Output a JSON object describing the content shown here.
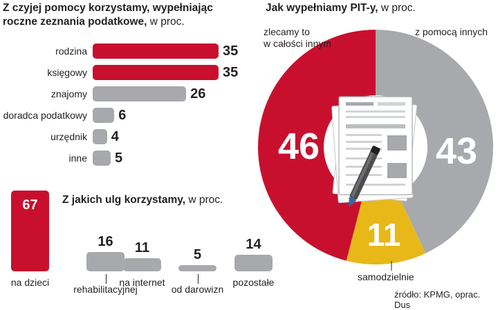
{
  "colors": {
    "red": "#c8102e",
    "gray": "#a7a9ac",
    "yellow": "#e8b819",
    "text": "#231f20"
  },
  "chart_data": [
    {
      "type": "bar",
      "orientation": "horizontal",
      "title_bold": "Z czyjej pomocy korzystamy, wypełniając roczne zeznania podatkowe,",
      "title_line1": "Z czyjej pomocy korzystamy, wypełniając",
      "title_line2": "roczne zeznania podatkowe,",
      "unit": "w proc.",
      "categories": [
        "rodzina",
        "księgowy",
        "znajomy",
        "doradca podatkowy",
        "urzędnik",
        "inne"
      ],
      "values": [
        35,
        35,
        26,
        6,
        4,
        5
      ],
      "colors": [
        "red",
        "red",
        "gray",
        "gray",
        "gray",
        "gray"
      ]
    },
    {
      "type": "bar",
      "orientation": "vertical",
      "title": "Z jakich ulg korzystamy,",
      "unit": "w proc.",
      "categories": [
        "na dzieci",
        "rehabilitacyjnej",
        "na internet",
        "od darowizn",
        "pozostałe"
      ],
      "values": [
        67,
        16,
        11,
        5,
        14
      ],
      "colors": [
        "red",
        "gray",
        "gray",
        "gray",
        "gray"
      ]
    },
    {
      "type": "pie",
      "title": "Jak wypełniamy PIT-y,",
      "unit": "w proc.",
      "slices": [
        {
          "label": "zlecamy to w całości innym",
          "label_line1": "zlecamy to",
          "label_line2": "w całości innym",
          "value": 46,
          "color": "red"
        },
        {
          "label": "z pomocą innych",
          "value": 43,
          "color": "gray"
        },
        {
          "label": "samodzielnie",
          "value": 11,
          "color": "yellow"
        }
      ]
    }
  ],
  "source": "źródło: KPMG, oprac. Dus"
}
